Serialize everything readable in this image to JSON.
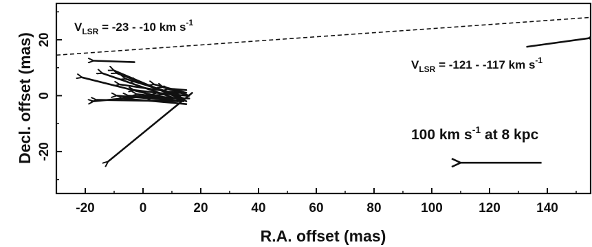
{
  "chart_data": {
    "type": "vector-field",
    "xlabel": "R.A. offset (mas)",
    "ylabel": "Decl. offset (mas)",
    "xlim": [
      -30,
      155
    ],
    "ylim": [
      -35,
      33
    ],
    "x_reversed": false,
    "x_ticks": [
      -20,
      0,
      20,
      40,
      60,
      80,
      100,
      120,
      140
    ],
    "y_ticks": [
      -20,
      0,
      20
    ],
    "grid": false,
    "annotations": [
      {
        "V": "V",
        "sub": "LSR",
        "rest": " = -23 - -10 km s",
        "sup": "-1"
      },
      {
        "V": "V",
        "sub": "LSR",
        "rest": " = -121 - -117 km s",
        "sup": "-1"
      }
    ],
    "scale_label": {
      "pre": "100 km s",
      "sup": "-1",
      "post": " at 8 kpc"
    },
    "dashed_line": {
      "from": [
        -30,
        14.5
      ],
      "to": [
        155,
        28
      ]
    },
    "scale_arrow": {
      "from": [
        138,
        -24
      ],
      "to": [
        110,
        -24
      ]
    },
    "vectors": [
      {
        "from": [
          -3,
          12
        ],
        "to": [
          -17,
          12.5
        ]
      },
      {
        "from": [
          12,
          -2
        ],
        "to": [
          -21,
          6.5
        ]
      },
      {
        "from": [
          14,
          -2
        ],
        "to": [
          -14,
          8
        ]
      },
      {
        "from": [
          15,
          -2
        ],
        "to": [
          -10,
          9
        ]
      },
      {
        "from": [
          14,
          -1
        ],
        "to": [
          -9,
          8
        ]
      },
      {
        "from": [
          13,
          0
        ],
        "to": [
          -6,
          6
        ]
      },
      {
        "from": [
          12,
          1
        ],
        "to": [
          -8,
          4
        ]
      },
      {
        "from": [
          14,
          -1
        ],
        "to": [
          -2,
          5
        ]
      },
      {
        "from": [
          13,
          0
        ],
        "to": [
          -3,
          2
        ]
      },
      {
        "from": [
          15,
          1
        ],
        "to": [
          4,
          4
        ]
      },
      {
        "from": [
          16,
          0
        ],
        "to": [
          7,
          3
        ]
      },
      {
        "from": [
          15,
          2
        ],
        "to": [
          9,
          2.5
        ]
      },
      {
        "from": [
          13,
          1
        ],
        "to": [
          -17,
          -2
        ]
      },
      {
        "from": [
          14,
          -2
        ],
        "to": [
          -9,
          0
        ]
      },
      {
        "from": [
          13,
          -1
        ],
        "to": [
          -5,
          0
        ]
      },
      {
        "from": [
          12,
          -1
        ],
        "to": [
          -2,
          0.5
        ]
      },
      {
        "from": [
          13,
          -2
        ],
        "to": [
          -16,
          -1.5
        ]
      },
      {
        "from": [
          15,
          -3
        ],
        "to": [
          -7,
          -1
        ]
      },
      {
        "from": [
          16,
          -1
        ],
        "to": [
          3,
          -1
        ]
      },
      {
        "from": [
          15,
          0
        ],
        "to": [
          5,
          1
        ]
      },
      {
        "from": [
          17,
          1
        ],
        "to": [
          -12,
          -23.5
        ]
      },
      {
        "from": [
          133,
          17.5
        ],
        "to": [
          154,
          20.5
        ]
      }
    ]
  }
}
